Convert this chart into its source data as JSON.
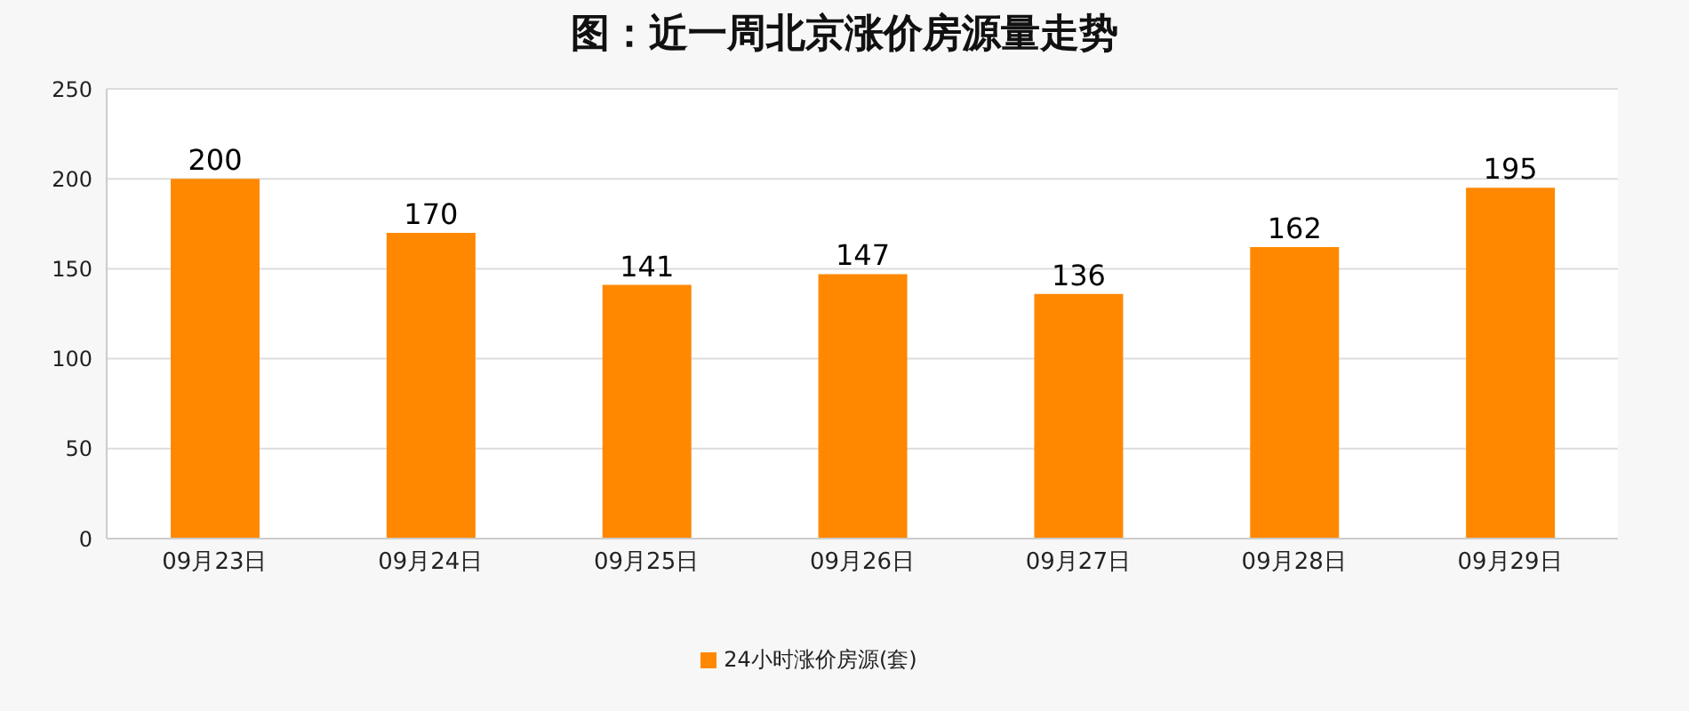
{
  "chart_data": {
    "type": "bar",
    "title": "图：近一周北京涨价房源量走势",
    "categories": [
      "09月23日",
      "09月24日",
      "09月25日",
      "09月26日",
      "09月27日",
      "09月28日",
      "09月29日"
    ],
    "series": [
      {
        "name": "24小时涨价房源(套)",
        "color": "#ff8800",
        "values": [
          200,
          170,
          141,
          147,
          136,
          162,
          195
        ]
      }
    ],
    "ylim": [
      0,
      250
    ],
    "yticks": [
      0,
      50,
      100,
      150,
      200,
      250
    ],
    "grid": "y",
    "legend": "bottom",
    "data_labels": true
  }
}
